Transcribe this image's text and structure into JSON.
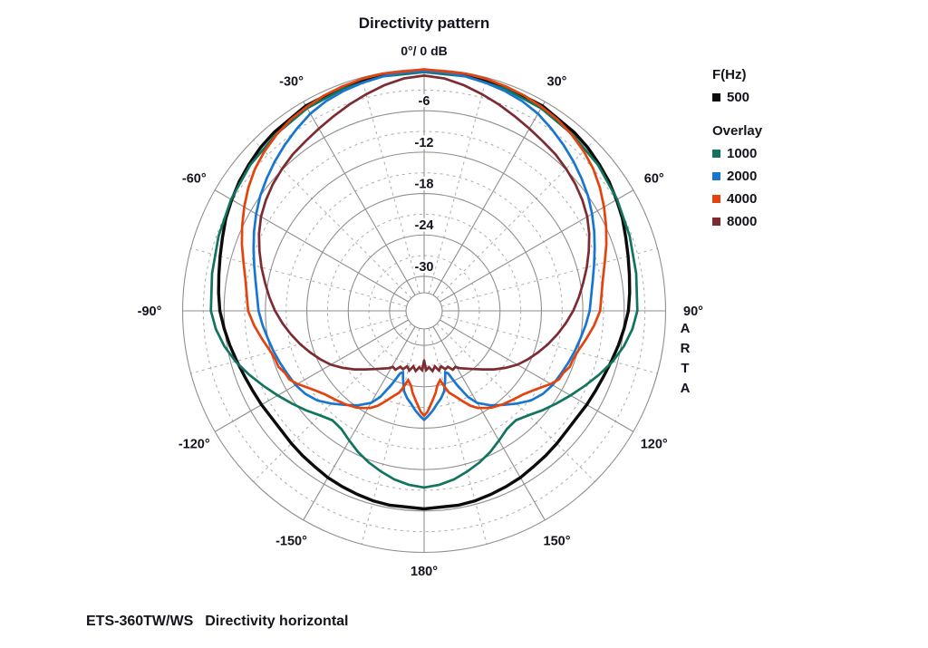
{
  "title": "Directivity pattern",
  "caption": {
    "model": "ETS-360TW/WS",
    "text": "Directivity horizontal"
  },
  "watermark": "ARTA",
  "legend": {
    "primary_header": "F(Hz)",
    "primary": [
      {
        "label": "500",
        "color": "#0b0b0b"
      }
    ],
    "overlay_header": "Overlay",
    "overlay": [
      {
        "label": "1000",
        "color": "#10745e"
      },
      {
        "label": "2000",
        "color": "#1876cf"
      },
      {
        "label": "4000",
        "color": "#e4430d"
      },
      {
        "label": "8000",
        "color": "#7c2b31"
      }
    ]
  },
  "chart_data": {
    "type": "line",
    "projection": "polar",
    "title": "Directivity pattern",
    "apex_label": "0°/ 0 dB",
    "angle_unit": "degrees",
    "radial_unit": "dB",
    "r_range_db": [
      0,
      -35
    ],
    "db_rings_solid": [
      0,
      -6,
      -12,
      -18,
      -24,
      -30
    ],
    "db_rings_dashed": [
      -3,
      -9,
      -15,
      -21,
      -27
    ],
    "db_ring_labels": [
      {
        "db": -6,
        "label": "-6"
      },
      {
        "db": -12,
        "label": "-12"
      },
      {
        "db": -18,
        "label": "-18"
      },
      {
        "db": -24,
        "label": "-24"
      },
      {
        "db": -30,
        "label": "-30"
      }
    ],
    "angle_ticks": [
      {
        "angle": -30,
        "label": "-30°"
      },
      {
        "angle": 30,
        "label": "30°"
      },
      {
        "angle": -60,
        "label": "-60°"
      },
      {
        "angle": 60,
        "label": "60°"
      },
      {
        "angle": -90,
        "label": "-90°"
      },
      {
        "angle": 90,
        "label": "90°"
      },
      {
        "angle": -120,
        "label": "-120°"
      },
      {
        "angle": 120,
        "label": "120°"
      },
      {
        "angle": -150,
        "label": "-150°"
      },
      {
        "angle": 150,
        "label": "150°"
      },
      {
        "angle": 180,
        "label": "180°"
      }
    ],
    "spoke_step_solid_deg": 30,
    "spoke_step_dashed_deg": 15,
    "grid_color": "#8f8f8f",
    "grid_dashed_color": "#acacac",
    "legend_position": "right",
    "series": [
      {
        "name": "500",
        "freq_hz": 500,
        "color": "#0b0b0b",
        "width": 3.4,
        "mirror": true,
        "points_deg_db": [
          [
            0,
            -0.3
          ],
          [
            10,
            -0.35
          ],
          [
            20,
            -0.45
          ],
          [
            30,
            -0.7
          ],
          [
            40,
            -1.2
          ],
          [
            45,
            -1.5
          ],
          [
            50,
            -1.9
          ],
          [
            55,
            -2.3
          ],
          [
            60,
            -2.8
          ],
          [
            65,
            -3.3
          ],
          [
            70,
            -3.9
          ],
          [
            75,
            -4.4
          ],
          [
            80,
            -4.8
          ],
          [
            85,
            -5.1
          ],
          [
            90,
            -5.4
          ],
          [
            95,
            -5.9
          ],
          [
            100,
            -6.4
          ],
          [
            105,
            -6.9
          ],
          [
            110,
            -7.3
          ],
          [
            115,
            -7.6
          ],
          [
            120,
            -7.8
          ],
          [
            125,
            -8.0
          ],
          [
            130,
            -8.0
          ],
          [
            135,
            -7.8
          ],
          [
            140,
            -7.6
          ],
          [
            145,
            -7.4
          ],
          [
            150,
            -7.1
          ],
          [
            155,
            -6.9
          ],
          [
            160,
            -6.7
          ],
          [
            165,
            -6.5
          ],
          [
            170,
            -6.4
          ],
          [
            180,
            -6.3
          ]
        ]
      },
      {
        "name": "1000",
        "freq_hz": 1000,
        "color": "#10745e",
        "width": 2.7,
        "mirror": true,
        "points_deg_db": [
          [
            0,
            -0.4
          ],
          [
            10,
            -0.5
          ],
          [
            20,
            -0.75
          ],
          [
            30,
            -1.1
          ],
          [
            40,
            -1.6
          ],
          [
            50,
            -2.1
          ],
          [
            60,
            -2.7
          ],
          [
            70,
            -3.3
          ],
          [
            80,
            -3.8
          ],
          [
            90,
            -4.1
          ],
          [
            95,
            -4.7
          ],
          [
            100,
            -5.6
          ],
          [
            105,
            -6.7
          ],
          [
            110,
            -8.0
          ],
          [
            115,
            -9.3
          ],
          [
            120,
            -10.5
          ],
          [
            125,
            -11.6
          ],
          [
            130,
            -12.6
          ],
          [
            135,
            -13.6
          ],
          [
            140,
            -14.3
          ],
          [
            145,
            -14.1
          ],
          [
            150,
            -13.3
          ],
          [
            155,
            -12.4
          ],
          [
            160,
            -11.6
          ],
          [
            165,
            -10.9
          ],
          [
            170,
            -10.2
          ],
          [
            175,
            -9.7
          ],
          [
            180,
            -9.4
          ]
        ]
      },
      {
        "name": "2000",
        "freq_hz": 2000,
        "color": "#1876cf",
        "width": 2.7,
        "mirror": true,
        "points_deg_db": [
          [
            0,
            -0.3
          ],
          [
            5,
            -0.35
          ],
          [
            10,
            -0.5
          ],
          [
            15,
            -0.75
          ],
          [
            20,
            -1.05
          ],
          [
            25,
            -1.45
          ],
          [
            30,
            -2.0
          ],
          [
            35,
            -2.8
          ],
          [
            40,
            -3.6
          ],
          [
            45,
            -4.4
          ],
          [
            50,
            -5.2
          ],
          [
            55,
            -6.0
          ],
          [
            60,
            -6.9
          ],
          [
            65,
            -7.8
          ],
          [
            70,
            -8.7
          ],
          [
            75,
            -9.5
          ],
          [
            80,
            -10.2
          ],
          [
            85,
            -10.7
          ],
          [
            90,
            -11.0
          ],
          [
            95,
            -11.5
          ],
          [
            100,
            -12.0
          ],
          [
            105,
            -12.4
          ],
          [
            110,
            -12.8
          ],
          [
            115,
            -13.2
          ],
          [
            120,
            -13.5
          ],
          [
            125,
            -14.0
          ],
          [
            130,
            -14.8
          ],
          [
            135,
            -16.0
          ],
          [
            140,
            -17.2
          ],
          [
            145,
            -18.3
          ],
          [
            150,
            -19.6
          ],
          [
            153,
            -21.0
          ],
          [
            156,
            -23.2
          ],
          [
            159,
            -25.3
          ],
          [
            161,
            -25.6
          ],
          [
            163,
            -24.6
          ],
          [
            166,
            -23.0
          ],
          [
            169,
            -22.1
          ],
          [
            172,
            -21.4
          ],
          [
            175,
            -20.5
          ],
          [
            178,
            -19.7
          ],
          [
            180,
            -19.2
          ]
        ]
      },
      {
        "name": "4000",
        "freq_hz": 4000,
        "color": "#e4430d",
        "width": 2.7,
        "mirror": true,
        "points_deg_db": [
          [
            0,
            0.0
          ],
          [
            10,
            -0.1
          ],
          [
            15,
            -0.2
          ],
          [
            20,
            -0.4
          ],
          [
            25,
            -0.6
          ],
          [
            30,
            -0.9
          ],
          [
            35,
            -1.2
          ],
          [
            40,
            -1.7
          ],
          [
            45,
            -2.3
          ],
          [
            50,
            -3.0
          ],
          [
            55,
            -3.9
          ],
          [
            60,
            -4.9
          ],
          [
            65,
            -5.9
          ],
          [
            70,
            -6.9
          ],
          [
            75,
            -7.9
          ],
          [
            80,
            -8.7
          ],
          [
            85,
            -9.2
          ],
          [
            90,
            -9.5
          ],
          [
            95,
            -10.3
          ],
          [
            100,
            -11.2
          ],
          [
            105,
            -12.0
          ],
          [
            108,
            -12.3
          ],
          [
            111,
            -12.4
          ],
          [
            114,
            -12.9
          ],
          [
            117,
            -13.1
          ],
          [
            120,
            -13.8
          ],
          [
            125,
            -15.2
          ],
          [
            130,
            -16.2
          ],
          [
            135,
            -16.8
          ],
          [
            140,
            -17.3
          ],
          [
            145,
            -17.9
          ],
          [
            148,
            -18.4
          ],
          [
            151,
            -18.9
          ],
          [
            154,
            -19.7
          ],
          [
            157,
            -20.8
          ],
          [
            160,
            -21.8
          ],
          [
            163,
            -22.6
          ],
          [
            165,
            -23.6
          ],
          [
            167,
            -24.7
          ],
          [
            170,
            -24.0
          ],
          [
            172,
            -23.0
          ],
          [
            175,
            -21.8
          ],
          [
            178,
            -20.4
          ],
          [
            180,
            -19.8
          ]
        ]
      },
      {
        "name": "8000",
        "freq_hz": 8000,
        "color": "#7c2b31",
        "width": 2.7,
        "mirror": true,
        "points_deg_db": [
          [
            0,
            -0.9
          ],
          [
            5,
            -1.2
          ],
          [
            10,
            -1.8
          ],
          [
            15,
            -2.5
          ],
          [
            20,
            -3.2
          ],
          [
            25,
            -3.9
          ],
          [
            30,
            -4.5
          ],
          [
            35,
            -5.0
          ],
          [
            40,
            -5.4
          ],
          [
            45,
            -5.9
          ],
          [
            50,
            -6.4
          ],
          [
            55,
            -7.0
          ],
          [
            60,
            -7.7
          ],
          [
            65,
            -8.6
          ],
          [
            70,
            -9.6
          ],
          [
            75,
            -10.6
          ],
          [
            80,
            -11.6
          ],
          [
            85,
            -12.5
          ],
          [
            90,
            -13.4
          ],
          [
            95,
            -14.4
          ],
          [
            100,
            -15.4
          ],
          [
            105,
            -16.4
          ],
          [
            110,
            -17.4
          ],
          [
            115,
            -18.4
          ],
          [
            120,
            -19.4
          ],
          [
            125,
            -20.6
          ],
          [
            130,
            -21.8
          ],
          [
            135,
            -23.0
          ],
          [
            140,
            -24.0
          ],
          [
            145,
            -24.8
          ],
          [
            148,
            -25.2
          ],
          [
            151,
            -25.7
          ],
          [
            154,
            -25.5
          ],
          [
            157,
            -26.2
          ],
          [
            160,
            -26.0
          ],
          [
            163,
            -26.6
          ],
          [
            166,
            -26.1
          ],
          [
            169,
            -26.8
          ],
          [
            172,
            -26.2
          ],
          [
            175,
            -26.8
          ],
          [
            178,
            -26.4
          ],
          [
            180,
            -27.8
          ]
        ]
      }
    ]
  }
}
